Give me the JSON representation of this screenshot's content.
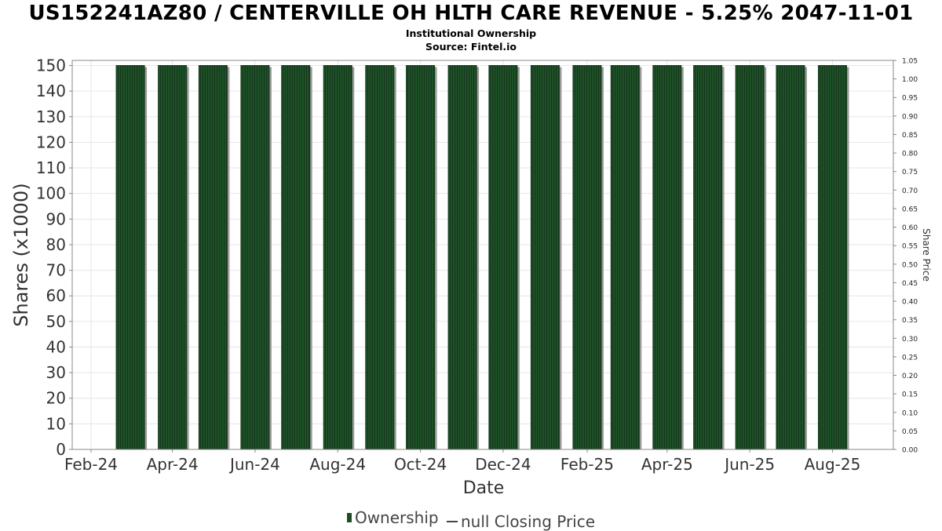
{
  "chart_data": {
    "type": "bar",
    "title": "US152241AZ80 / CENTERVILLE OH HLTH CARE REVENUE - 5.25% 2047-11-01",
    "subtitle": "Institutional Ownership",
    "source": "Source: Fintel.io",
    "xlabel": "Date",
    "ylabel": "Shares (x1000)",
    "y2label": "Share Price",
    "ylim": [
      0,
      152
    ],
    "y2lim": [
      0,
      1.05
    ],
    "x_tick_labels": [
      "Feb-24",
      "Apr-24",
      "Jun-24",
      "Aug-24",
      "Oct-24",
      "Dec-24",
      "Feb-25",
      "Apr-25",
      "Jun-25",
      "Aug-25"
    ],
    "y_ticks": [
      0,
      10,
      20,
      30,
      40,
      50,
      60,
      70,
      80,
      90,
      100,
      110,
      120,
      130,
      140,
      150
    ],
    "y2_ticks": [
      "0.00",
      "0.05",
      "0.10",
      "0.15",
      "0.20",
      "0.25",
      "0.30",
      "0.35",
      "0.40",
      "0.45",
      "0.50",
      "0.55",
      "0.60",
      "0.65",
      "0.70",
      "0.75",
      "0.80",
      "0.85",
      "0.90",
      "0.95",
      "1.00",
      "1.05"
    ],
    "x_start": "2024-02-01",
    "x_end": "2025-09-01",
    "bar_dates": [
      "2024-03-01",
      "2024-04-01",
      "2024-05-01",
      "2024-06-01",
      "2024-07-01",
      "2024-08-01",
      "2024-09-01",
      "2024-10-01",
      "2024-11-01",
      "2024-12-01",
      "2025-01-01",
      "2025-02-01",
      "2025-03-01",
      "2025-04-01",
      "2025-05-01",
      "2025-06-01",
      "2025-07-01",
      "2025-08-01"
    ],
    "series": [
      {
        "name": "Ownership",
        "color": "#1d4d27",
        "values": [
          150,
          150,
          150,
          150,
          150,
          150,
          150,
          150,
          150,
          150,
          150,
          150,
          150,
          150,
          150,
          150,
          150,
          150
        ]
      },
      {
        "name": "null Closing Price",
        "color": "#444444",
        "values": []
      }
    ],
    "grid": true,
    "legend_position": "bottom"
  }
}
